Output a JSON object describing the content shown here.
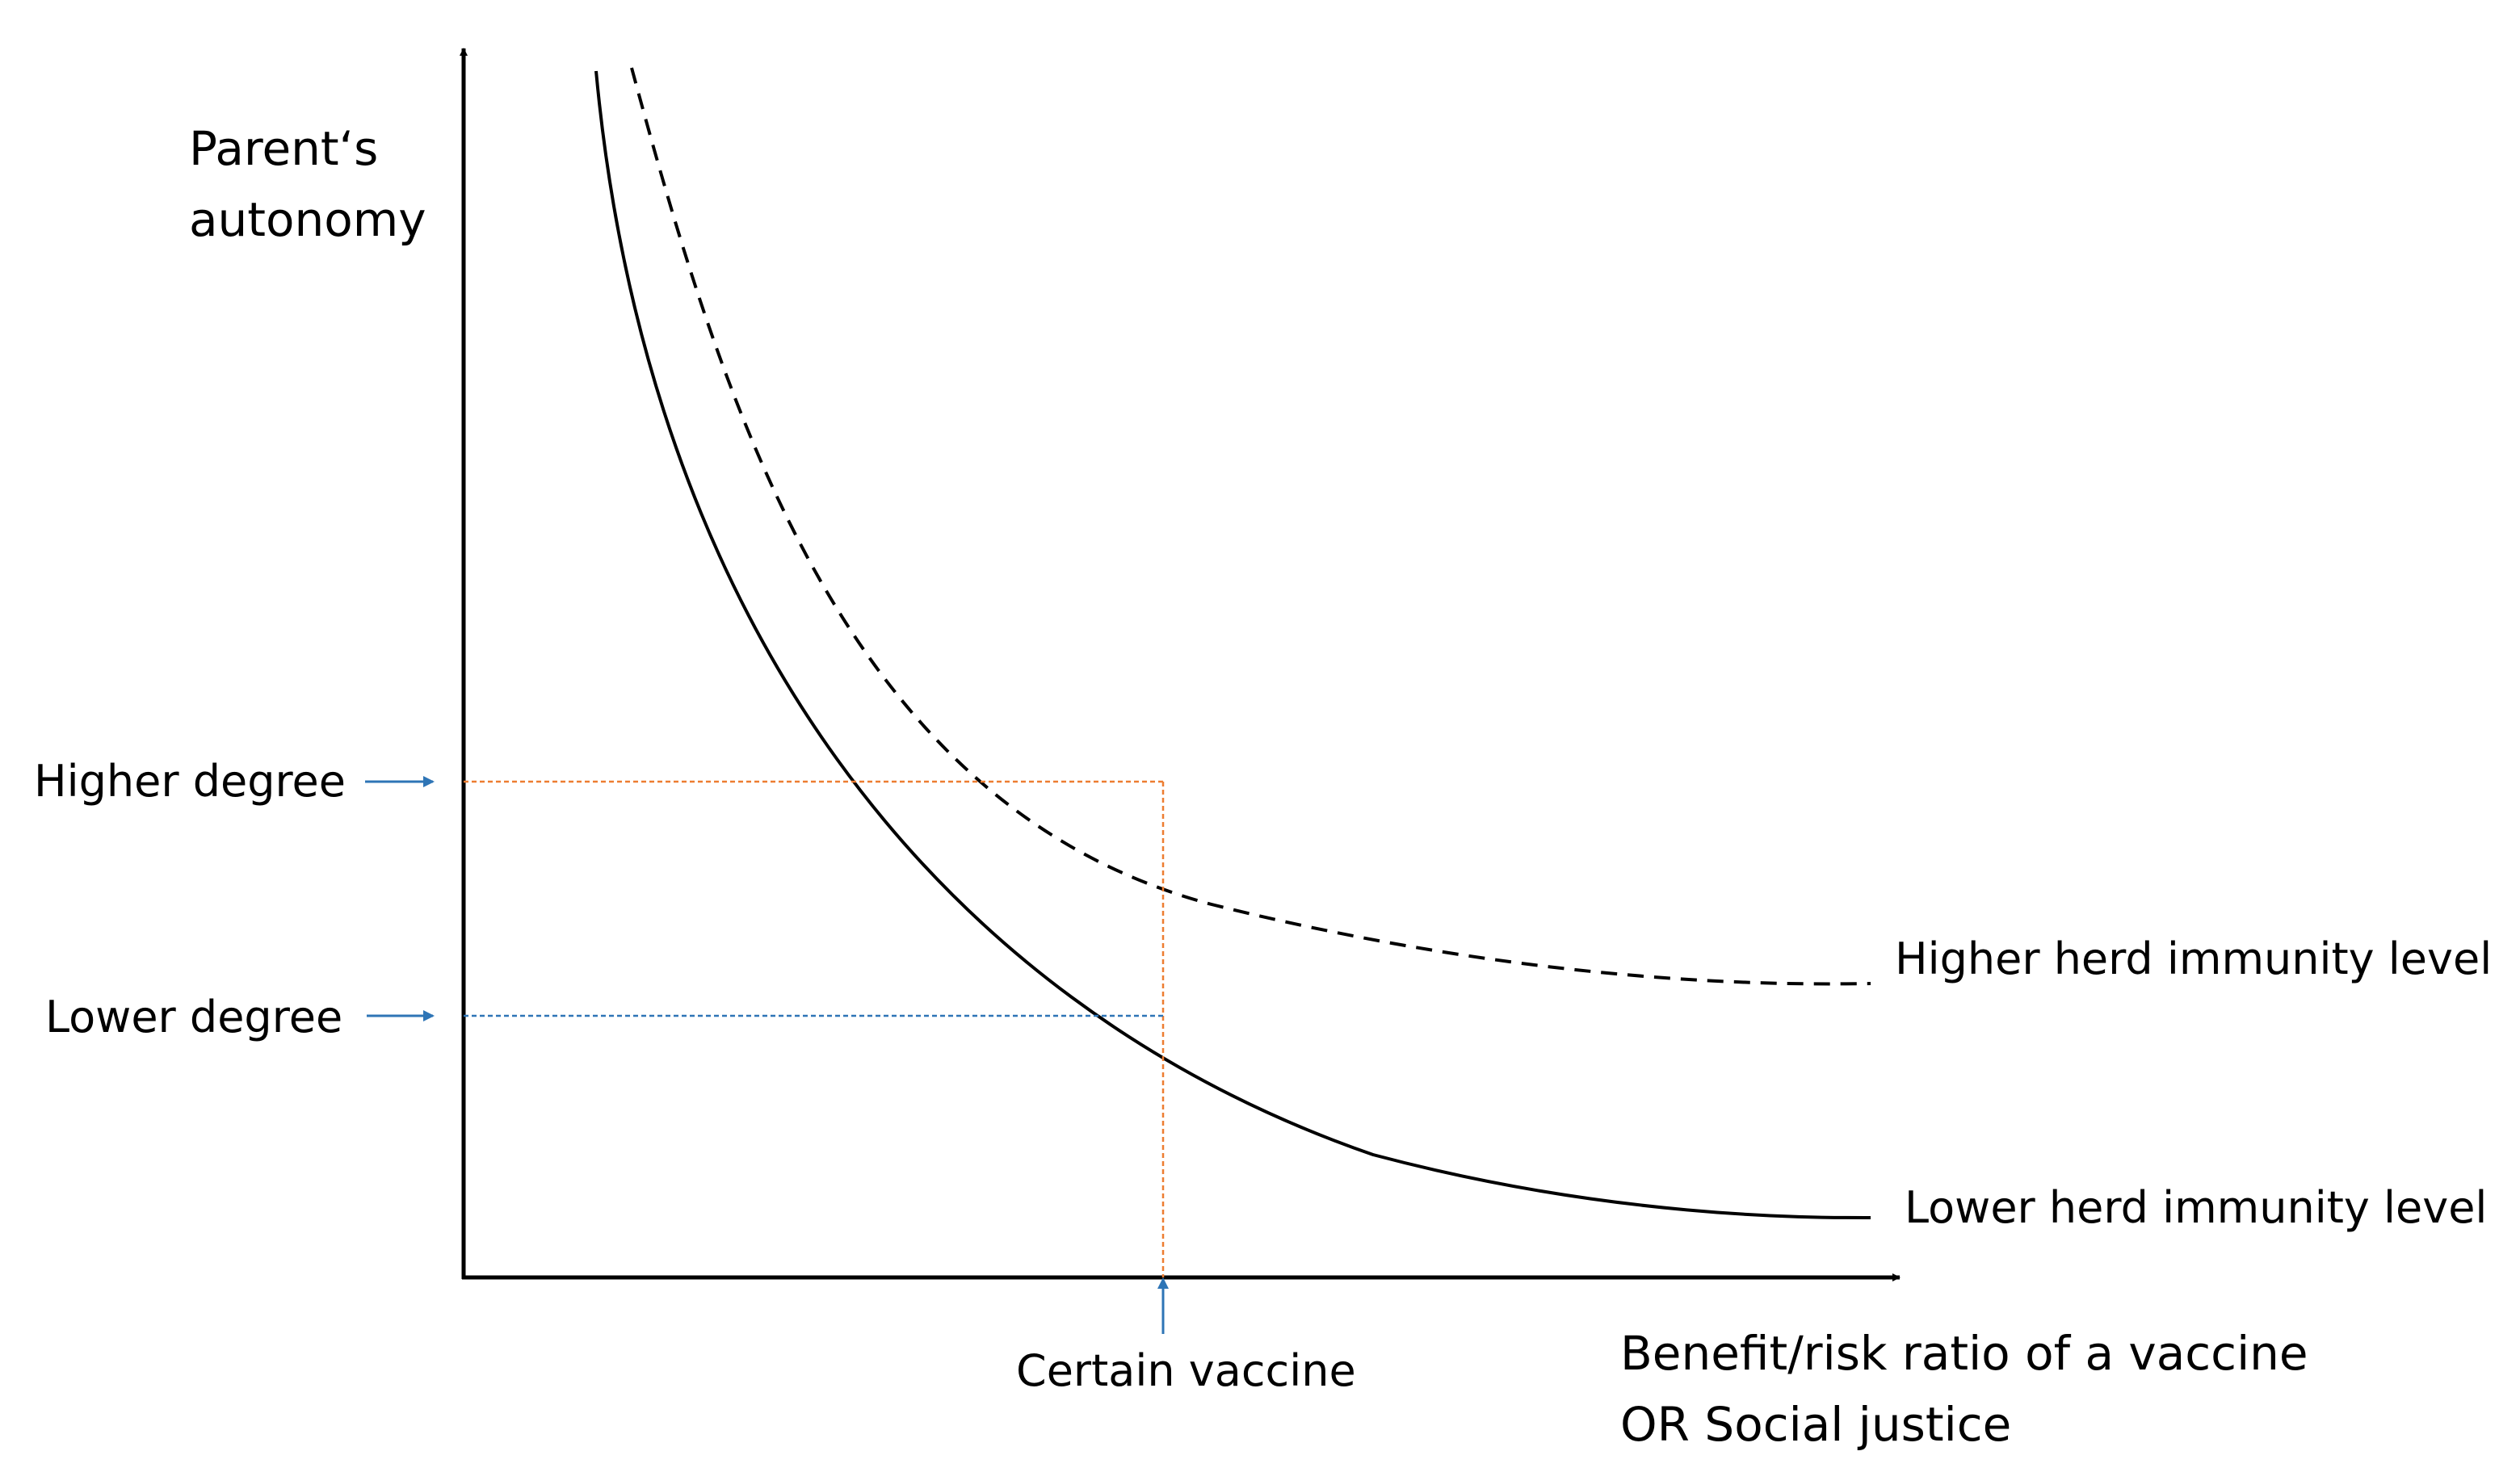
{
  "y_axis_label": [
    "Parent‘s",
    "autonomy"
  ],
  "x_axis_label": [
    "Benefit/risk ratio of a vaccine",
    "OR Social justice"
  ],
  "levels": {
    "higher": "Higher degree",
    "lower": "Lower degree"
  },
  "curves": {
    "higher": "Higher herd immunity level",
    "lower": "Lower herd immunity level"
  },
  "marker": "Certain vaccine",
  "colors": {
    "curve": "#000000",
    "axis": "#000000",
    "higher_guide": "#ED7D31",
    "lower_guide": "#2E75B6",
    "arrow": "#2E75B6"
  }
}
